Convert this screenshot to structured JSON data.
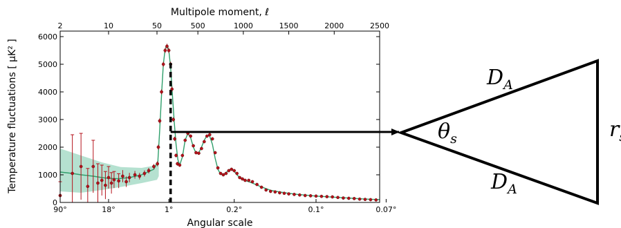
{
  "chart_data": {
    "type": "scatter",
    "title": "Multipole moment, ℓ",
    "xlabel": "Angular scale",
    "ylabel": "Temperature fluctuations [ μK² ]",
    "ylim": [
      0,
      6200
    ],
    "y_ticks": [
      "0",
      "1000",
      "2000",
      "3000",
      "4000",
      "5000",
      "6000"
    ],
    "top_ticks": [
      "2",
      "10",
      "50",
      "500",
      "1000",
      "1500",
      "2000",
      "2500"
    ],
    "bottom_ticks": [
      "90°",
      "18°",
      "1°",
      "0.2°",
      "0.1°",
      "0.07°"
    ],
    "colors": {
      "points": "#b5121b",
      "model": "#2e9e6a",
      "band": "#a8dcc8"
    },
    "x": [
      2,
      3,
      4,
      5,
      6,
      7,
      8,
      9,
      10,
      11,
      12,
      14,
      16,
      18,
      20,
      24,
      28,
      33,
      38,
      45,
      55,
      65,
      80,
      100,
      120,
      140,
      160,
      180,
      200,
      215,
      230,
      245,
      260,
      275,
      300,
      330,
      360,
      390,
      420,
      450,
      480,
      510,
      540,
      570,
      600,
      630,
      660,
      690,
      720,
      750,
      780,
      810,
      840,
      870,
      900,
      930,
      960,
      990,
      1020,
      1060,
      1100,
      1150,
      1200,
      1250,
      1300,
      1350,
      1400,
      1450,
      1500,
      1560,
      1620,
      1680,
      1740,
      1800,
      1860,
      1920,
      1980,
      2040,
      2100,
      2160,
      2220,
      2280,
      2340,
      2400,
      2460
    ],
    "y": [
      250,
      1050,
      1300,
      580,
      1300,
      700,
      800,
      620,
      900,
      700,
      820,
      780,
      950,
      750,
      900,
      1000,
      950,
      1050,
      1150,
      1300,
      1400,
      2000,
      2950,
      4000,
      5000,
      5500,
      5650,
      5500,
      5000,
      4100,
      3000,
      2300,
      1700,
      1400,
      1350,
      1700,
      2250,
      2500,
      2400,
      2050,
      1800,
      1780,
      1950,
      2200,
      2400,
      2450,
      2300,
      1800,
      1250,
      1050,
      1000,
      1050,
      1150,
      1200,
      1150,
      1050,
      900,
      850,
      800,
      800,
      750,
      650,
      550,
      450,
      400,
      380,
      350,
      330,
      310,
      290,
      270,
      250,
      240,
      230,
      220,
      210,
      200,
      180,
      160,
      150,
      140,
      120,
      110,
      100,
      90
    ],
    "err": [
      500,
      1400,
      1200,
      650,
      950,
      700,
      550,
      500,
      400,
      380,
      300,
      260,
      220,
      190,
      170,
      140,
      120,
      110,
      100,
      90,
      90,
      90,
      90,
      90,
      90,
      90,
      90,
      90,
      90,
      90,
      80,
      80,
      70,
      70,
      60,
      60,
      60,
      60,
      60,
      60,
      60,
      55,
      55,
      55,
      55,
      55,
      55,
      50,
      50,
      50,
      40,
      40,
      40,
      40,
      40,
      40,
      40,
      40,
      40,
      40,
      40,
      35,
      35,
      35,
      35,
      35,
      35,
      35,
      35,
      35,
      35,
      35,
      35,
      35,
      35,
      35,
      35,
      35,
      35,
      35,
      35,
      35,
      35,
      35,
      35
    ],
    "model_x": [
      2,
      3,
      4,
      6,
      8,
      10,
      14,
      20,
      30,
      45,
      60,
      80,
      100,
      120,
      140,
      160,
      180,
      200,
      220,
      240,
      260,
      280,
      300,
      330,
      360,
      390,
      420,
      450,
      480,
      510,
      540,
      570,
      600,
      630,
      660,
      690,
      720,
      750,
      780,
      810,
      840,
      870,
      900,
      930,
      960,
      1000,
      1050,
      1100,
      1200,
      1300,
      1400,
      1500,
      1600,
      1700,
      1800,
      1900,
      2000,
      2100,
      2200,
      2300,
      2400,
      2500
    ],
    "model_y": [
      1100,
      1050,
      1000,
      950,
      900,
      870,
      860,
      900,
      1000,
      1200,
      1500,
      2600,
      3900,
      5000,
      5550,
      5700,
      5500,
      4900,
      3900,
      2900,
      2100,
      1550,
      1350,
      1650,
      2250,
      2500,
      2350,
      2000,
      1780,
      1800,
      2000,
      2250,
      2420,
      2400,
      2100,
      1600,
      1200,
      1020,
      1000,
      1070,
      1180,
      1200,
      1120,
      1000,
      900,
      820,
      760,
      700,
      560,
      440,
      380,
      330,
      290,
      260,
      230,
      210,
      190,
      170,
      150,
      130,
      115,
      100
    ],
    "band_x": [
      2,
      4,
      8,
      15,
      30,
      50,
      70
    ],
    "band_low": [
      400,
      350,
      450,
      560,
      700,
      820,
      950
    ],
    "band_high": [
      1950,
      1700,
      1450,
      1280,
      1250,
      1350,
      1550
    ],
    "peak_ell": 200,
    "arrow_from_value": 2550
  },
  "diagram": {
    "labels": {
      "side_top_main": "D",
      "side_top_sub": "A",
      "angle_main": "θ",
      "angle_sub": "s",
      "side_bottom_main": "D",
      "side_bottom_sub": "A",
      "right_main": "r",
      "right_sub": "s"
    }
  }
}
